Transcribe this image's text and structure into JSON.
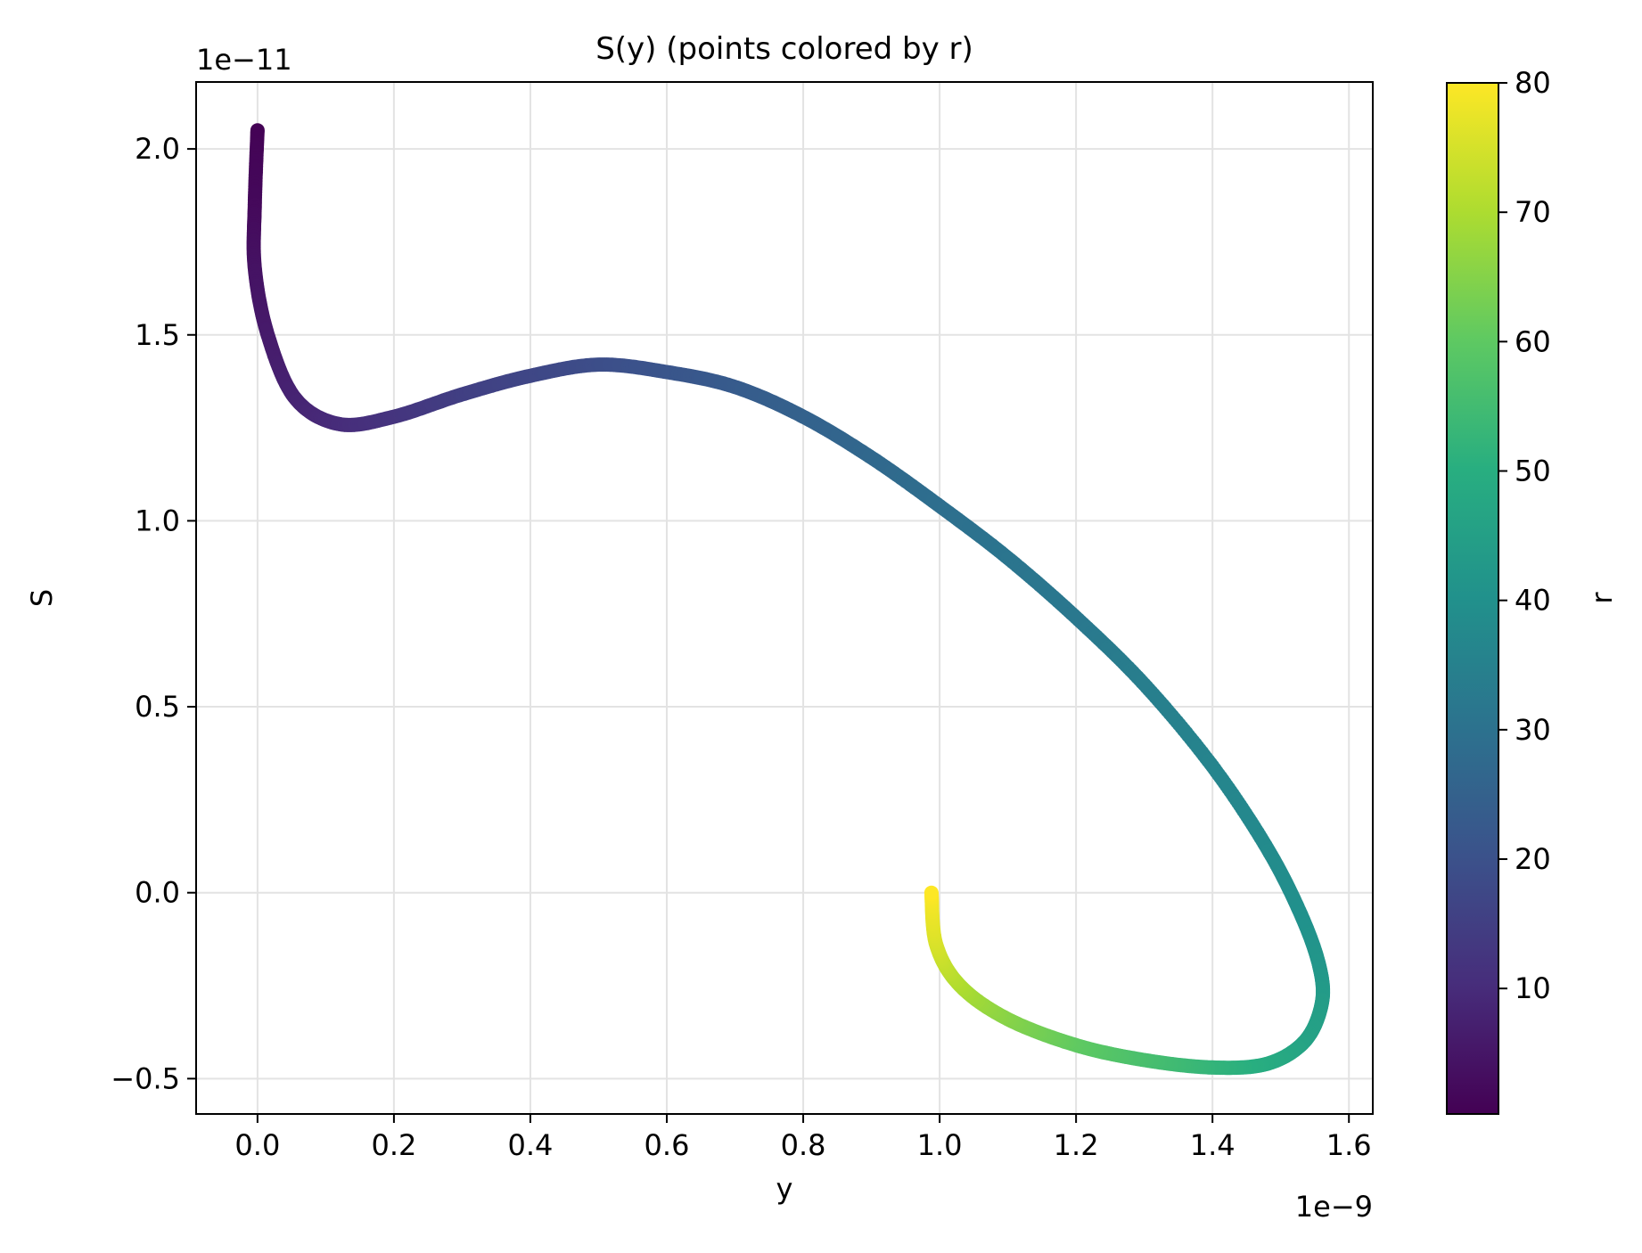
{
  "chart_data": {
    "type": "scatter",
    "title": "S(y) (points colored by r)",
    "xlabel": "y",
    "ylabel": "S",
    "x_offset_text": "1e−9",
    "y_offset_text": "1e−11",
    "xlim": [
      -0.09,
      1.635
    ],
    "ylim": [
      -0.595,
      2.18
    ],
    "xticks": [
      0.0,
      0.2,
      0.4,
      0.6,
      0.8,
      1.0,
      1.2,
      1.4,
      1.6
    ],
    "xtick_labels": [
      "0.0",
      "0.2",
      "0.4",
      "0.6",
      "0.8",
      "1.0",
      "1.2",
      "1.4",
      "1.6"
    ],
    "yticks": [
      -0.5,
      0.0,
      0.5,
      1.0,
      1.5,
      2.0
    ],
    "ytick_labels": [
      "−0.5",
      "0.0",
      "0.5",
      "1.0",
      "1.5",
      "2.0"
    ],
    "grid": true,
    "colorbar": {
      "label": "r",
      "range": [
        0.3,
        80
      ],
      "ticks": [
        10,
        20,
        30,
        40,
        50,
        60,
        70,
        80
      ],
      "tick_labels": [
        "10",
        "20",
        "30",
        "40",
        "50",
        "60",
        "70",
        "80"
      ],
      "colormap": "viridis"
    },
    "points": [
      {
        "x": 0.0,
        "y": 2.05,
        "r": 0.5
      },
      {
        "x": -0.004,
        "y": 1.85,
        "r": 2
      },
      {
        "x": -0.004,
        "y": 1.68,
        "r": 4
      },
      {
        "x": 0.015,
        "y": 1.5,
        "r": 6
      },
      {
        "x": 0.055,
        "y": 1.33,
        "r": 8
      },
      {
        "x": 0.12,
        "y": 1.26,
        "r": 10
      },
      {
        "x": 0.2,
        "y": 1.28,
        "r": 12
      },
      {
        "x": 0.3,
        "y": 1.34,
        "r": 15
      },
      {
        "x": 0.4,
        "y": 1.39,
        "r": 17
      },
      {
        "x": 0.5,
        "y": 1.42,
        "r": 19
      },
      {
        "x": 0.6,
        "y": 1.4,
        "r": 21
      },
      {
        "x": 0.7,
        "y": 1.36,
        "r": 23
      },
      {
        "x": 0.8,
        "y": 1.28,
        "r": 25
      },
      {
        "x": 0.9,
        "y": 1.17,
        "r": 27
      },
      {
        "x": 1.0,
        "y": 1.04,
        "r": 29
      },
      {
        "x": 1.1,
        "y": 0.9,
        "r": 31
      },
      {
        "x": 1.2,
        "y": 0.74,
        "r": 32
      },
      {
        "x": 1.3,
        "y": 0.56,
        "r": 34
      },
      {
        "x": 1.4,
        "y": 0.34,
        "r": 36
      },
      {
        "x": 1.48,
        "y": 0.12,
        "r": 38
      },
      {
        "x": 1.53,
        "y": -0.06,
        "r": 40
      },
      {
        "x": 1.557,
        "y": -0.2,
        "r": 42
      },
      {
        "x": 1.56,
        "y": -0.3,
        "r": 44
      },
      {
        "x": 1.535,
        "y": -0.4,
        "r": 46
      },
      {
        "x": 1.48,
        "y": -0.46,
        "r": 49
      },
      {
        "x": 1.4,
        "y": -0.47,
        "r": 52
      },
      {
        "x": 1.3,
        "y": -0.45,
        "r": 56
      },
      {
        "x": 1.2,
        "y": -0.41,
        "r": 60
      },
      {
        "x": 1.1,
        "y": -0.34,
        "r": 65
      },
      {
        "x": 1.03,
        "y": -0.25,
        "r": 70
      },
      {
        "x": 0.995,
        "y": -0.14,
        "r": 75
      },
      {
        "x": 0.988,
        "y": 0.0,
        "r": 80
      }
    ]
  }
}
